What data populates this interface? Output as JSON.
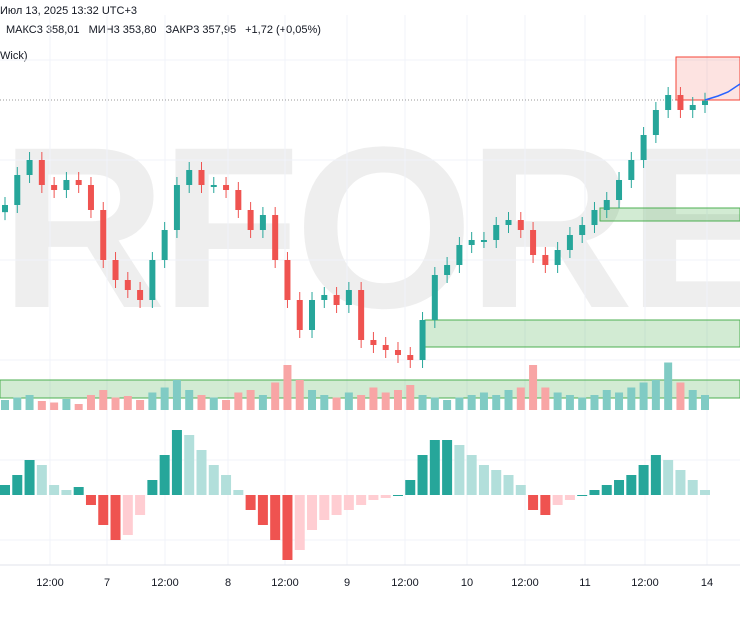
{
  "header": {
    "date": "Июл 13, 2025 13:32 UTC+3",
    "high": "МАКС3 358,01",
    "low": "МИН3 353,80",
    "close": "ЗАКР3 357,95",
    "change": "+1,72 (+0,05%)",
    "indicator": "Wick)"
  },
  "watermark": "RFOREX",
  "colors": {
    "up": "#26a69a",
    "down": "#ef5350",
    "up_light": "#b2dfdb",
    "down_light": "#ffcdd2",
    "zone": "#4caf50",
    "supply": "#f44336",
    "projection": "#2962ff"
  },
  "x_axis": [
    "12:00",
    "7",
    "12:00",
    "8",
    "12:00",
    "9",
    "12:00",
    "10",
    "12:00",
    "11",
    "12:00",
    "14"
  ],
  "chart_data": {
    "type": "candlestick",
    "closes": [
      350.65,
      352.75,
      353.8,
      352.05,
      351.7,
      352.4,
      352.05,
      350.3,
      346.8,
      345.4,
      344.7,
      344.0,
      346.8,
      348.9,
      352.05,
      353.1,
      352.05,
      352.05,
      351.7,
      350.3,
      348.9,
      349.95,
      346.8,
      344.0,
      341.9,
      344.0,
      344.35,
      343.65,
      344.7,
      341.2,
      340.85,
      340.5,
      340.15,
      339.8,
      342.6,
      345.75,
      346.45,
      347.85,
      348.2,
      348.2,
      349.25,
      349.6,
      348.9,
      347.15,
      346.45,
      347.5,
      348.55,
      349.25,
      350.3,
      351.0,
      352.4,
      353.8,
      355.55,
      357.3,
      358.35,
      357.3,
      357.65,
      357.95
    ],
    "volume": [
      20,
      25,
      30,
      18,
      15,
      22,
      12,
      30,
      40,
      25,
      28,
      20,
      35,
      45,
      60,
      40,
      30,
      25,
      20,
      35,
      40,
      30,
      55,
      90,
      60,
      40,
      30,
      25,
      35,
      30,
      45,
      35,
      40,
      50,
      30,
      25,
      20,
      25,
      30,
      35,
      30,
      40,
      45,
      90,
      45,
      35,
      30,
      25,
      30,
      40,
      35,
      45,
      55,
      60,
      95,
      55,
      40,
      30
    ],
    "oscillator": [
      10,
      20,
      35,
      30,
      10,
      5,
      8,
      -10,
      -30,
      -45,
      -40,
      -20,
      15,
      40,
      65,
      60,
      45,
      30,
      20,
      5,
      -15,
      -30,
      -45,
      -65,
      -55,
      -35,
      -25,
      -20,
      -15,
      -10,
      -5,
      -3,
      0,
      15,
      40,
      55,
      55,
      50,
      40,
      30,
      25,
      20,
      10,
      -15,
      -20,
      -10,
      -5,
      0,
      5,
      10,
      15,
      20,
      30,
      40,
      35,
      25,
      15,
      5
    ]
  }
}
